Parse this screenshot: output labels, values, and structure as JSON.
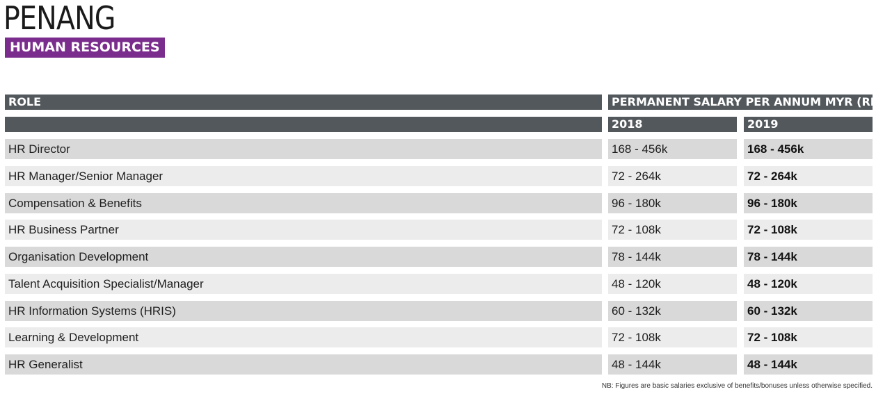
{
  "header": {
    "city": "PENANG",
    "department": "HUMAN RESOURCES"
  },
  "table": {
    "role_header": "ROLE",
    "salary_header": "PERMANENT SALARY PER ANNUM MYR (RM)",
    "year_2018": "2018",
    "year_2019": "2019",
    "rows": [
      {
        "role": "HR Director",
        "y2018": "168 - 456k",
        "y2019": "168 - 456k"
      },
      {
        "role": "HR Manager/Senior Manager",
        "y2018": "72 - 264k",
        "y2019": "72 - 264k"
      },
      {
        "role": "Compensation & Benefits",
        "y2018": "96 - 180k",
        "y2019": "96 - 180k"
      },
      {
        "role": "HR Business Partner",
        "y2018": "72 - 108k",
        "y2019": "72 - 108k"
      },
      {
        "role": "Organisation Development",
        "y2018": "78 - 144k",
        "y2019": "78 - 144k"
      },
      {
        "role": "Talent Acquisition Specialist/Manager",
        "y2018": "48 - 120k",
        "y2019": "48 - 120k"
      },
      {
        "role": "HR Information Systems (HRIS)",
        "y2018": "60 - 132k",
        "y2019": "60 - 132k"
      },
      {
        "role": "Learning & Development",
        "y2018": "72 - 108k",
        "y2019": "72 - 108k"
      },
      {
        "role": "HR Generalist",
        "y2018": "48 - 144k",
        "y2019": "48 - 144k"
      }
    ]
  },
  "footnote": "NB: Figures are basic salaries exclusive of benefits/bonuses unless otherwise specified.",
  "colors": {
    "accent": "#7a2d8c",
    "header_bar": "#52585c",
    "row_dark": "#d9d9d9",
    "row_light": "#ececec"
  }
}
